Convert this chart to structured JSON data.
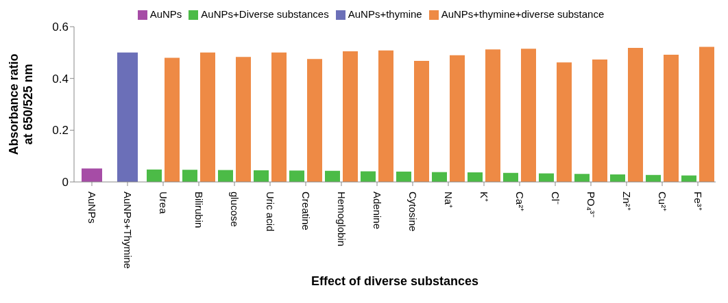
{
  "chart_data": {
    "type": "bar",
    "xlabel": "Effect of diverse substances",
    "ylabel": "Absorbance ratio\nat 650/525 nm",
    "categories": [
      "AuNPs",
      "AuNPs+Thymine",
      "Urea",
      "Bilirubin",
      "glucose",
      "Uric acid",
      "Creatine",
      "Hemoglobin",
      "Adenine",
      "Cytosine",
      "Na⁺",
      "K⁺",
      "Ca²⁺",
      "Cl⁻",
      "PO₄³⁻",
      "Zn²⁺",
      "Cu²⁺",
      "Fe³⁺"
    ],
    "series": [
      {
        "name": "AuNPs",
        "color": "#a64ca6",
        "values": [
          0.052,
          null,
          null,
          null,
          null,
          null,
          null,
          null,
          null,
          null,
          null,
          null,
          null,
          null,
          null,
          null,
          null,
          null
        ]
      },
      {
        "name": "AuNPs+thymine",
        "color": "#6b6fb8",
        "values": [
          null,
          0.5,
          null,
          null,
          null,
          null,
          null,
          null,
          null,
          null,
          null,
          null,
          null,
          null,
          null,
          null,
          null,
          null
        ]
      },
      {
        "name": "AuNPs+Diverse substances",
        "color": "#4cbb47",
        "values": [
          null,
          null,
          0.048,
          0.047,
          0.046,
          0.045,
          0.044,
          0.043,
          0.041,
          0.04,
          0.038,
          0.037,
          0.035,
          0.033,
          0.031,
          0.029,
          0.027,
          0.025
        ]
      },
      {
        "name": "AuNPs+thymine+diverse substance",
        "color": "#ee8a45",
        "values": [
          null,
          null,
          0.48,
          0.5,
          0.483,
          0.5,
          0.475,
          0.505,
          0.508,
          0.468,
          0.49,
          0.512,
          0.515,
          0.462,
          0.473,
          0.518,
          0.492,
          0.522
        ]
      }
    ],
    "ylim": [
      0,
      0.6
    ],
    "yticks": [
      0,
      0.2,
      0.4,
      0.6
    ],
    "grid": false,
    "legend": "top"
  }
}
